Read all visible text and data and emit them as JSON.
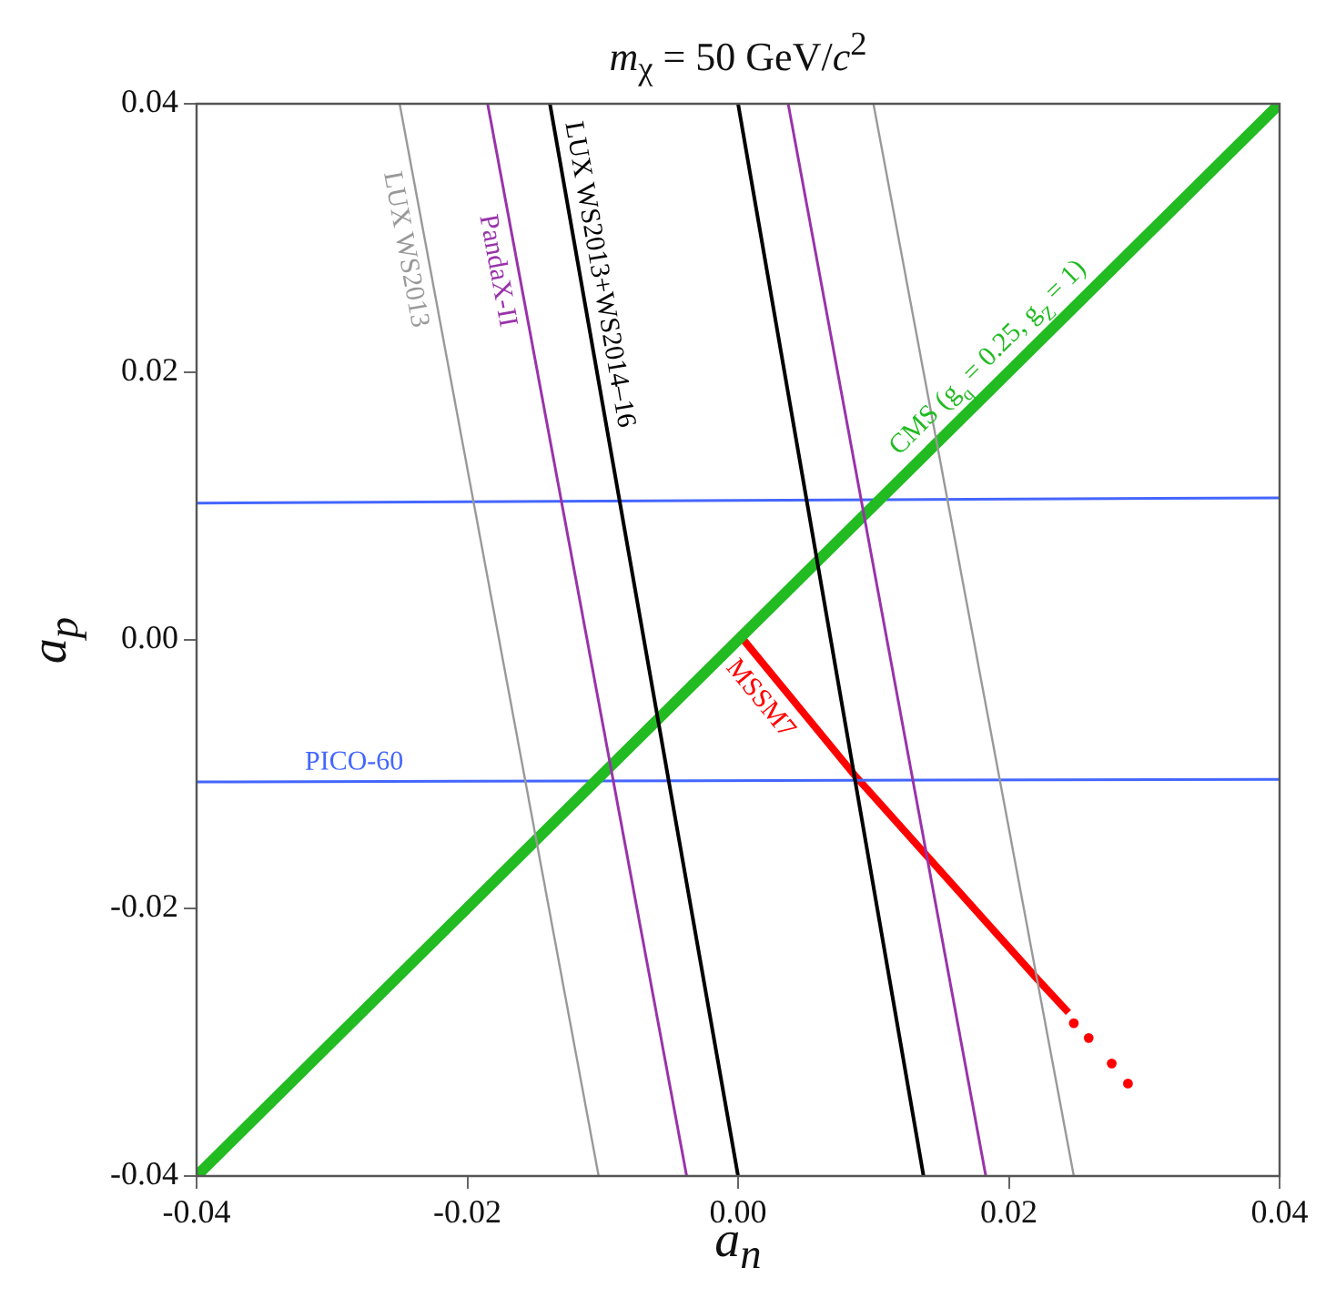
{
  "chart_data": {
    "type": "line",
    "title": "m$_{χ}$ = 50 GeV/c$^{2}$",
    "xlabel": "a$_{n}$",
    "ylabel": "a$_{p}$",
    "xlim": [
      -0.04,
      0.04
    ],
    "ylim": [
      -0.04,
      0.04
    ],
    "xticks": [
      -0.04,
      -0.02,
      {
        "value": 0,
        "label": "0.00"
      },
      0.02,
      0.04
    ],
    "yticks": [
      -0.04,
      -0.02,
      {
        "value": 0,
        "label": "0.00"
      },
      0.02,
      0.04
    ],
    "grid": false,
    "legend": false,
    "marker": "none",
    "line_style": "solid",
    "series": [
      {
        "name": "LUX WS2013",
        "color": "#999999",
        "type": "line",
        "x": [
          -0.025,
          -0.0103
        ],
        "values": [
          0.04,
          -0.04
        ]
      },
      {
        "color": "#999999",
        "type": "line",
        "x": [
          0.01,
          0.0248
        ],
        "values": [
          0.04,
          -0.04
        ]
      },
      {
        "name": "PandaX-II",
        "color": "#9933aa",
        "type": "line",
        "x": [
          -0.0185,
          -0.0038
        ],
        "values": [
          0.04,
          -0.04
        ]
      },
      {
        "color": "#9933aa",
        "type": "line",
        "x": [
          0.0037,
          0.0183
        ],
        "values": [
          0.04,
          -0.04
        ]
      },
      {
        "name": "LUX WS2013+WS2014–16",
        "color": "#000000",
        "type": "line",
        "x": [
          -0.0139,
          0.0
        ],
        "values": [
          0.04,
          -0.04
        ]
      },
      {
        "color": "#000000",
        "type": "line",
        "x": [
          0.0,
          0.0137
        ],
        "values": [
          0.04,
          -0.04
        ]
      },
      {
        "name": "CMS (g$_{q}$ = 0.25, g$_{Z}$ = 1)",
        "color": "#22bb22",
        "type": "line",
        "x": [
          -0.04,
          0.04
        ],
        "values": [
          -0.04,
          0.04
        ]
      },
      {
        "name": "PICO-60",
        "color": "#4466ff",
        "type": "line",
        "x": [
          -0.04,
          0.04
        ],
        "values": [
          -0.0106,
          -0.0104
        ]
      },
      {
        "color": "#4466ff",
        "type": "line",
        "x": [
          -0.04,
          0.04
        ],
        "values": [
          0.0102,
          0.0106
        ]
      },
      {
        "name": "MSSM7",
        "color": "#ff0000",
        "type": "line",
        "x": [
          0.0,
          0.0087,
          0.0221,
          0.0244
        ],
        "values": [
          0.0005,
          -0.0102,
          -0.0253,
          -0.0278
        ]
      },
      {
        "color": "#ff0000",
        "type": "scatter",
        "marker": "circle",
        "x": [
          0.0248,
          0.0259,
          0.0276,
          0.0288
        ],
        "values": [
          -0.0286,
          -0.0297,
          -0.0316,
          -0.0331
        ]
      }
    ]
  }
}
